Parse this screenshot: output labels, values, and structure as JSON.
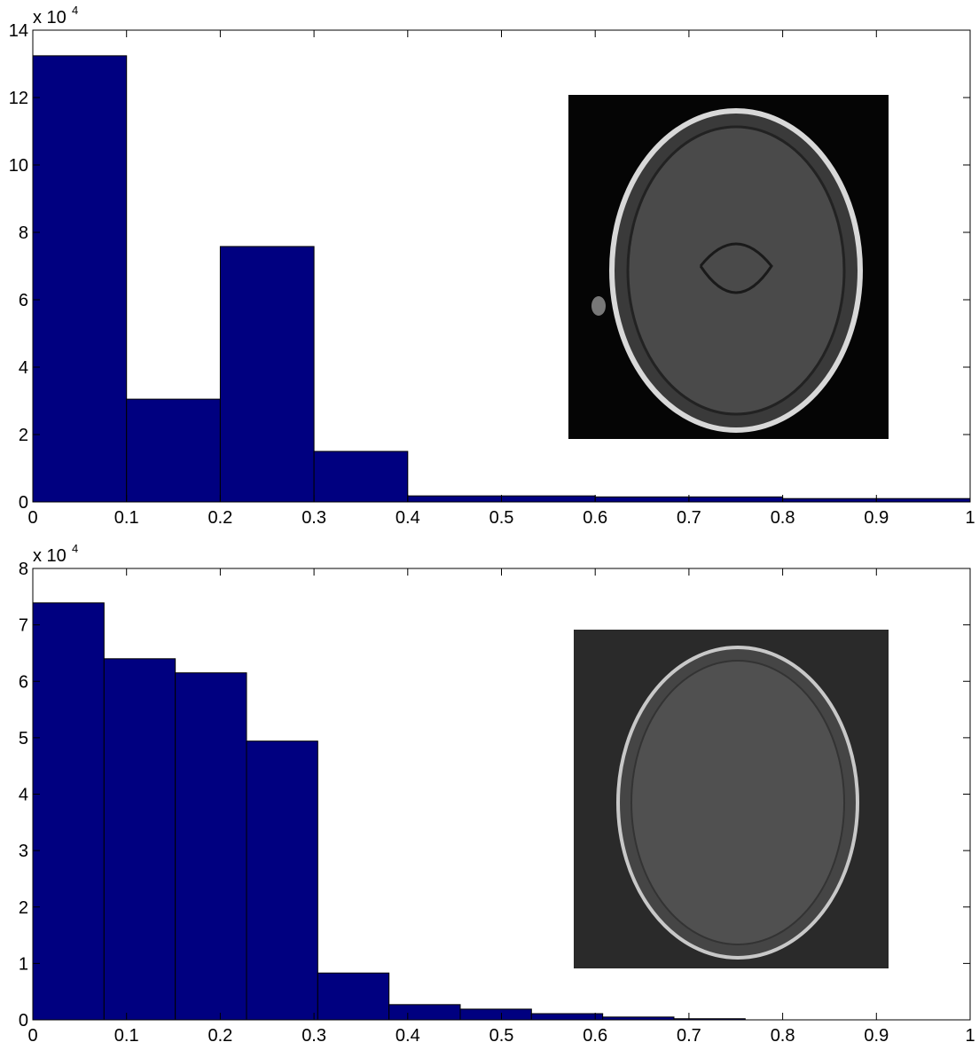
{
  "chart_data": [
    {
      "type": "histogram",
      "bins": [
        0,
        0.1,
        0.2,
        0.3,
        0.4,
        0.5,
        0.6,
        0.7,
        0.8,
        0.9,
        1
      ],
      "values": [
        13.24,
        3.05,
        7.58,
        1.5,
        0.18,
        0.18,
        0.15,
        0.15,
        0.1,
        0.1
      ],
      "color": "#000080",
      "xlim": [
        0,
        1
      ],
      "ylim": [
        0,
        14
      ],
      "xticks": [
        0,
        0.1,
        0.2,
        0.3,
        0.4,
        0.5,
        0.6,
        0.7,
        0.8,
        0.9,
        1
      ],
      "yticks": [
        0,
        2,
        4,
        6,
        8,
        10,
        12,
        14
      ],
      "y_scale": {
        "base": "x 10",
        "exponent": 4
      }
    },
    {
      "type": "histogram",
      "bins": [
        0,
        0.076,
        0.152,
        0.228,
        0.304,
        0.38,
        0.456,
        0.532,
        0.608,
        0.684,
        0.76
      ],
      "values": [
        7.39,
        6.4,
        6.15,
        4.94,
        0.83,
        0.27,
        0.19,
        0.11,
        0.05,
        0.02
      ],
      "color": "#000080",
      "xlim": [
        0,
        1
      ],
      "ylim": [
        0,
        8
      ],
      "xticks": [
        0,
        0.1,
        0.2,
        0.3,
        0.4,
        0.5,
        0.6,
        0.7,
        0.8,
        0.9,
        1
      ],
      "yticks": [
        0,
        1,
        2,
        3,
        4,
        5,
        6,
        7,
        8
      ],
      "y_scale": {
        "base": "x 10",
        "exponent": 4
      }
    }
  ]
}
